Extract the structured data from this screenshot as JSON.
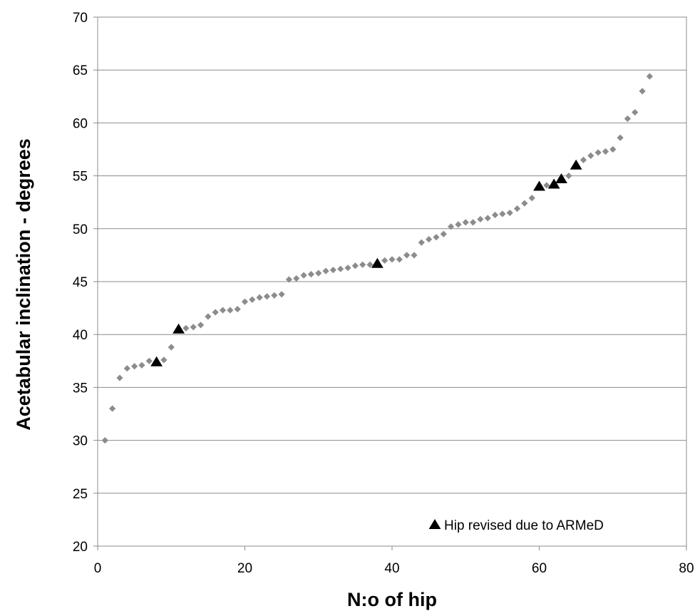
{
  "chart_data": {
    "type": "scatter",
    "xlabel": "N:o of hip",
    "ylabel": "Acetabular inclination - degrees",
    "xlim": [
      0,
      80
    ],
    "ylim": [
      20,
      70
    ],
    "x_ticks": [
      "0",
      "20",
      "40",
      "60",
      "80"
    ],
    "y_ticks": [
      "20",
      "25",
      "30",
      "35",
      "40",
      "45",
      "50",
      "55",
      "60",
      "65",
      "70"
    ],
    "grid": "horizontal",
    "legend_position": "bottom-right",
    "series": [
      {
        "marker": "diamond",
        "color": "#8c8c8c",
        "points": [
          [
            1,
            30.0
          ],
          [
            2,
            33.0
          ],
          [
            3,
            35.9
          ],
          [
            4,
            36.8
          ],
          [
            5,
            37.0
          ],
          [
            6,
            37.1
          ],
          [
            7,
            37.5
          ],
          [
            9,
            37.6
          ],
          [
            10,
            38.8
          ],
          [
            12,
            40.6
          ],
          [
            13,
            40.7
          ],
          [
            14,
            40.9
          ],
          [
            15,
            41.7
          ],
          [
            16,
            42.1
          ],
          [
            17,
            42.3
          ],
          [
            18,
            42.3
          ],
          [
            19,
            42.4
          ],
          [
            20,
            43.1
          ],
          [
            21,
            43.3
          ],
          [
            22,
            43.5
          ],
          [
            23,
            43.6
          ],
          [
            24,
            43.7
          ],
          [
            25,
            43.8
          ],
          [
            26,
            45.2
          ],
          [
            27,
            45.3
          ],
          [
            28,
            45.6
          ],
          [
            29,
            45.7
          ],
          [
            30,
            45.8
          ],
          [
            31,
            46.0
          ],
          [
            32,
            46.1
          ],
          [
            33,
            46.2
          ],
          [
            34,
            46.3
          ],
          [
            35,
            46.5
          ],
          [
            36,
            46.6
          ],
          [
            37,
            46.6
          ],
          [
            39,
            47.0
          ],
          [
            40,
            47.1
          ],
          [
            41,
            47.1
          ],
          [
            42,
            47.5
          ],
          [
            43,
            47.5
          ],
          [
            44,
            48.7
          ],
          [
            45,
            49.0
          ],
          [
            46,
            49.2
          ],
          [
            47,
            49.5
          ],
          [
            48,
            50.2
          ],
          [
            49,
            50.4
          ],
          [
            50,
            50.6
          ],
          [
            51,
            50.6
          ],
          [
            52,
            50.9
          ],
          [
            53,
            51.0
          ],
          [
            54,
            51.3
          ],
          [
            55,
            51.4
          ],
          [
            56,
            51.5
          ],
          [
            57,
            51.9
          ],
          [
            58,
            52.4
          ],
          [
            59,
            52.9
          ],
          [
            61,
            54.1
          ],
          [
            64,
            55.0
          ],
          [
            66,
            56.5
          ],
          [
            67,
            56.9
          ],
          [
            68,
            57.2
          ],
          [
            69,
            57.3
          ],
          [
            70,
            57.5
          ],
          [
            71,
            58.6
          ],
          [
            72,
            60.4
          ],
          [
            73,
            61.0
          ],
          [
            74,
            63.0
          ],
          [
            75,
            64.4
          ]
        ]
      },
      {
        "name": "Hip revised due to ARMeD",
        "marker": "triangle",
        "color": "#000000",
        "points": [
          [
            8,
            37.4
          ],
          [
            11,
            40.5
          ],
          [
            38,
            46.7
          ],
          [
            60,
            54.0
          ],
          [
            62,
            54.2
          ],
          [
            63,
            54.7
          ],
          [
            65,
            56.0
          ]
        ]
      }
    ]
  }
}
